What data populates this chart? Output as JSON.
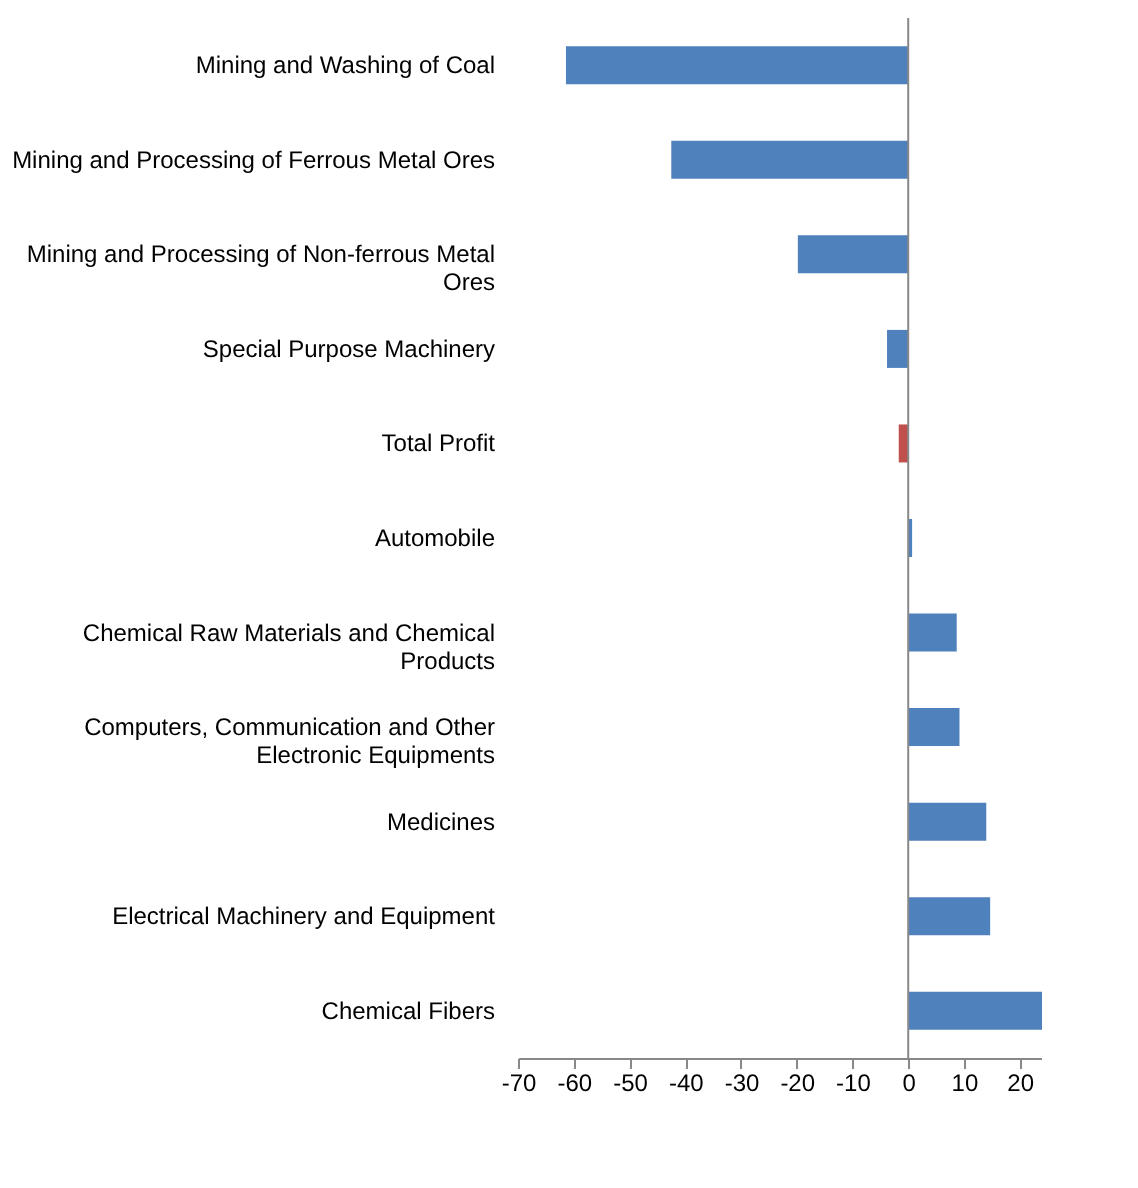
{
  "chart_data": {
    "type": "bar",
    "orientation": "horizontal",
    "categories": [
      "Mining and Washing of Coal",
      "Mining and Processing of Ferrous Metal Ores",
      "Mining and Processing of Non-ferrous Metal Ores",
      "Special Purpose Machinery",
      "Total Profit",
      "Automobile",
      "Chemical Raw Materials and Chemical Products",
      "Computers, Communication and Other Electronic Equipments",
      "Medicines",
      "Electrical Machinery and Equipment",
      "Chemical Fibers"
    ],
    "values": [
      -61.4,
      -42.5,
      -19.8,
      -3.8,
      -1.7,
      0.7,
      8.7,
      9.2,
      14,
      14.7,
      24
    ],
    "colors": [
      "#4f81bd",
      "#4f81bd",
      "#4f81bd",
      "#4f81bd",
      "#c0504d",
      "#4f81bd",
      "#4f81bd",
      "#4f81bd",
      "#4f81bd",
      "#4f81bd",
      "#4f81bd"
    ],
    "xlim": [
      -70,
      24
    ],
    "xticks": [
      -70,
      -60,
      -50,
      -40,
      -30,
      -20,
      -10,
      0,
      10,
      20
    ]
  }
}
